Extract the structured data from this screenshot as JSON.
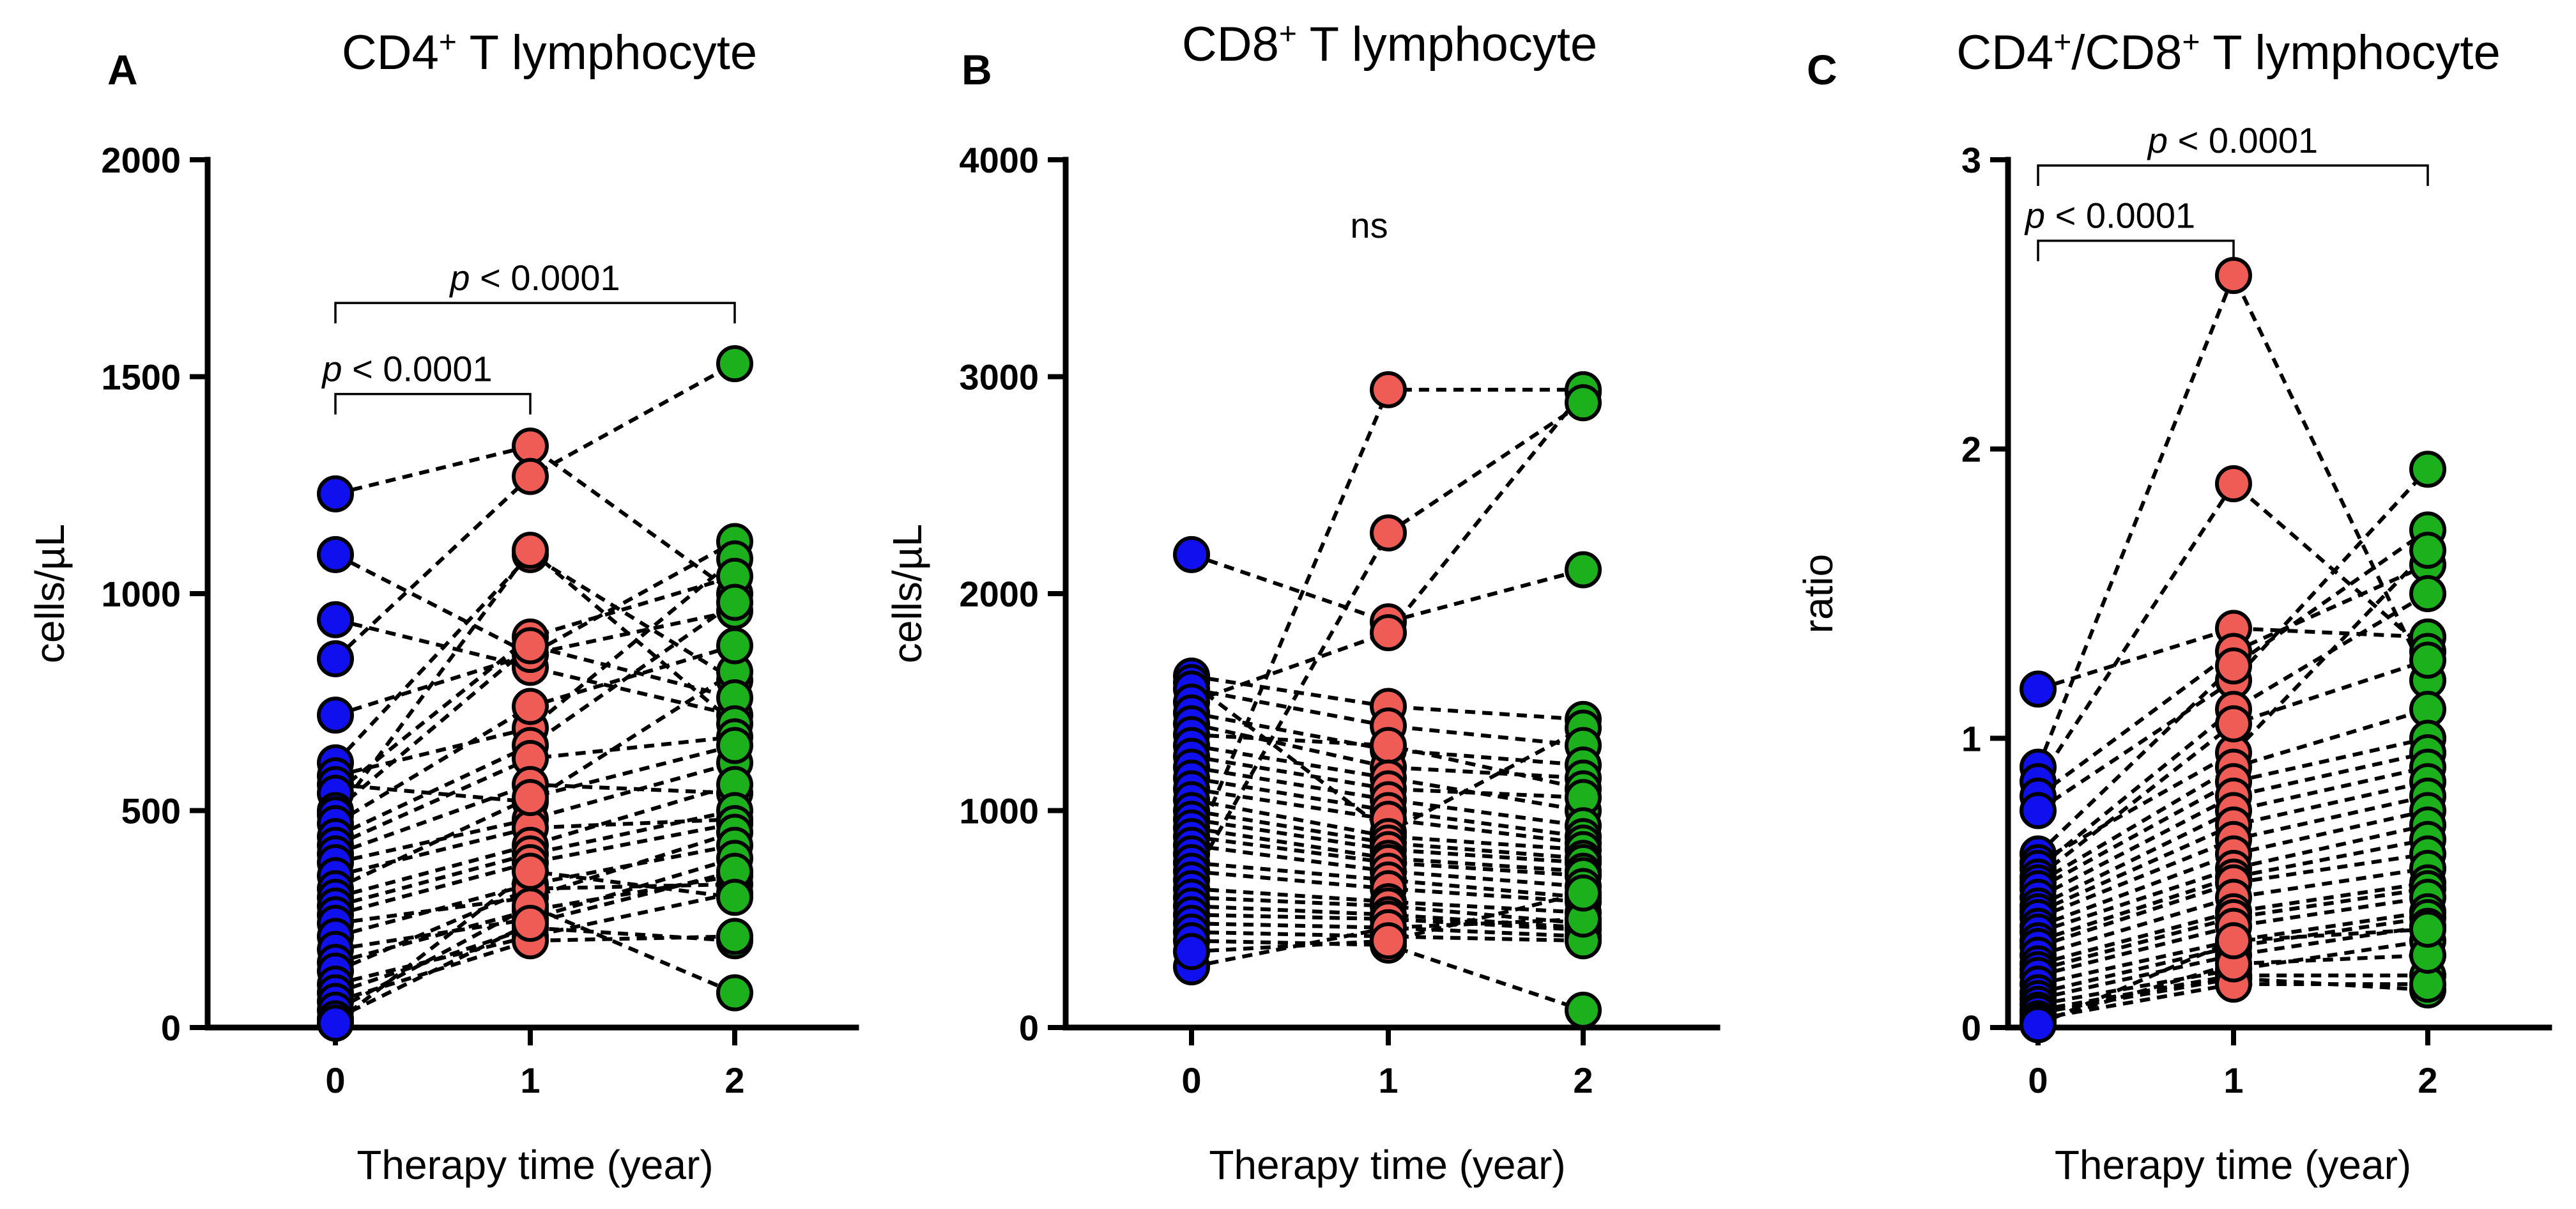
{
  "chart_data": [
    {
      "type": "scatter",
      "panel": "A",
      "title": "CD4",
      "title_sup": "+",
      "title_rest": " T lymphocyte",
      "xlabel": "Therapy time (year)",
      "ylabel": "cells/µL",
      "categories": [
        "0",
        "1",
        "2"
      ],
      "ylim": [
        0,
        2000
      ],
      "yticks": [
        0,
        500,
        1000,
        1500,
        2000
      ],
      "ytick_labels": [
        "0",
        "500",
        "1000",
        "1500",
        "2000"
      ],
      "series_colors": [
        "#1010ee",
        "#ef5b55",
        "#1cb01c"
      ],
      "comparisons": [
        {
          "from": 0,
          "to": 1,
          "label_p": "p",
          "label_rest": " < 0.0001",
          "y": 1460
        },
        {
          "from": 0,
          "to": 2,
          "label_p": "p",
          "label_rest": " < 0.0001",
          "y": 1670
        }
      ],
      "subjects": [
        [
          1230,
          1340,
          1000
        ],
        [
          1090,
          860,
          960
        ],
        [
          940,
          830,
          720
        ],
        [
          850,
          1270,
          1530
        ],
        [
          720,
          860,
          1120
        ],
        [
          610,
          1090,
          800
        ],
        [
          580,
          690,
          1080
        ],
        [
          560,
          520,
          820
        ],
        [
          540,
          900,
          1040
        ],
        [
          500,
          880,
          760
        ],
        [
          490,
          1100,
          700
        ],
        [
          470,
          740,
          880
        ],
        [
          440,
          650,
          980
        ],
        [
          420,
          620,
          670
        ],
        [
          400,
          560,
          540
        ],
        [
          380,
          480,
          610
        ],
        [
          350,
          460,
          480
        ],
        [
          320,
          530,
          650
        ],
        [
          300,
          420,
          560
        ],
        [
          280,
          400,
          500
        ],
        [
          260,
          380,
          470
        ],
        [
          240,
          300,
          450
        ],
        [
          210,
          330,
          420
        ],
        [
          180,
          250,
          390
        ],
        [
          150,
          270,
          350
        ],
        [
          130,
          320,
          330
        ],
        [
          100,
          210,
          310
        ],
        [
          80,
          230,
          200
        ],
        [
          60,
          200,
          210
        ],
        [
          40,
          280,
          80
        ],
        [
          20,
          240,
          360
        ],
        [
          10,
          360,
          300
        ]
      ]
    },
    {
      "type": "scatter",
      "panel": "B",
      "title": "CD8",
      "title_sup": "+",
      "title_rest": " T lymphocyte",
      "xlabel": "Therapy time (year)",
      "ylabel": "cells/µL",
      "categories": [
        "0",
        "1",
        "2"
      ],
      "ylim": [
        0,
        4000
      ],
      "yticks": [
        0,
        1000,
        2000,
        3000,
        4000
      ],
      "ytick_labels": [
        "0",
        "1000",
        "2000",
        "3000",
        "4000"
      ],
      "series_colors": [
        "#1010ee",
        "#ef5b55",
        "#1cb01c"
      ],
      "annotation": "ns",
      "subjects": [
        [
          2180,
          1870,
          2110
        ],
        [
          1620,
          1480,
          1420
        ],
        [
          1590,
          900,
          1380
        ],
        [
          1560,
          1390,
          1300
        ],
        [
          1500,
          1820,
          2930
        ],
        [
          1450,
          1280,
          1210
        ],
        [
          1400,
          1200,
          1150
        ],
        [
          1350,
          1300,
          1100
        ],
        [
          1300,
          1150,
          1000
        ],
        [
          1250,
          1100,
          1060
        ],
        [
          1200,
          1050,
          930
        ],
        [
          1150,
          1000,
          880
        ],
        [
          1100,
          960,
          850
        ],
        [
          1050,
          880,
          820
        ],
        [
          1000,
          850,
          780
        ],
        [
          960,
          820,
          760
        ],
        [
          920,
          780,
          720
        ],
        [
          880,
          760,
          700
        ],
        [
          840,
          720,
          650
        ],
        [
          800,
          2940,
          2940
        ],
        [
          760,
          680,
          600
        ],
        [
          720,
          640,
          580
        ],
        [
          680,
          2280,
          2880
        ],
        [
          640,
          580,
          530
        ],
        [
          600,
          560,
          480
        ],
        [
          560,
          520,
          460
        ],
        [
          520,
          500,
          450
        ],
        [
          480,
          460,
          420
        ],
        [
          440,
          420,
          400
        ],
        [
          400,
          380,
          80
        ],
        [
          280,
          460,
          500
        ],
        [
          350,
          400,
          620
        ]
      ]
    },
    {
      "type": "scatter",
      "panel": "C",
      "title": "CD4",
      "title_sup": "+",
      "title_rest": "/CD8",
      "title_sup2": "+",
      "title_rest2": " T lymphocyte",
      "xlabel": "Therapy time (year)",
      "ylabel": "ratio",
      "categories": [
        "0",
        "1",
        "2"
      ],
      "ylim": [
        0,
        3
      ],
      "yticks": [
        0,
        1,
        2,
        3
      ],
      "ytick_labels": [
        "0",
        "1",
        "2",
        "3"
      ],
      "series_colors": [
        "#1010ee",
        "#ef5b55",
        "#1cb01c"
      ],
      "comparisons": [
        {
          "from": 0,
          "to": 1,
          "label_p": "p",
          "label_rest": " < 0.0001",
          "y": 2.72
        },
        {
          "from": 0,
          "to": 2,
          "label_p": "p",
          "label_rest": " < 0.0001",
          "y": 2.98
        }
      ],
      "subjects": [
        [
          1.17,
          1.38,
          1.35
        ],
        [
          0.9,
          2.6,
          1.2
        ],
        [
          0.85,
          1.88,
          1.3
        ],
        [
          0.8,
          1.3,
          1.6
        ],
        [
          0.75,
          1.2,
          1.93
        ],
        [
          0.6,
          1.25,
          1.72
        ],
        [
          0.57,
          0.95,
          1.65
        ],
        [
          0.55,
          1.1,
          1.5
        ],
        [
          0.52,
          1.05,
          1.27
        ],
        [
          0.5,
          0.9,
          1.1
        ],
        [
          0.48,
          0.85,
          1.0
        ],
        [
          0.45,
          0.8,
          0.95
        ],
        [
          0.42,
          0.75,
          0.9
        ],
        [
          0.4,
          0.7,
          0.85
        ],
        [
          0.38,
          0.65,
          0.8
        ],
        [
          0.35,
          0.6,
          0.75
        ],
        [
          0.33,
          0.55,
          0.7
        ],
        [
          0.3,
          0.52,
          0.65
        ],
        [
          0.28,
          0.5,
          0.6
        ],
        [
          0.25,
          0.45,
          0.55
        ],
        [
          0.22,
          0.4,
          0.5
        ],
        [
          0.2,
          0.38,
          0.48
        ],
        [
          0.18,
          0.35,
          0.45
        ],
        [
          0.15,
          0.3,
          0.4
        ],
        [
          0.12,
          0.28,
          0.38
        ],
        [
          0.1,
          0.25,
          0.35
        ],
        [
          0.08,
          0.2,
          0.3
        ],
        [
          0.06,
          0.18,
          0.18
        ],
        [
          0.05,
          0.17,
          0.13
        ],
        [
          0.03,
          0.15,
          0.15
        ],
        [
          0.02,
          0.22,
          0.25
        ],
        [
          0.01,
          0.3,
          0.34
        ]
      ]
    }
  ]
}
